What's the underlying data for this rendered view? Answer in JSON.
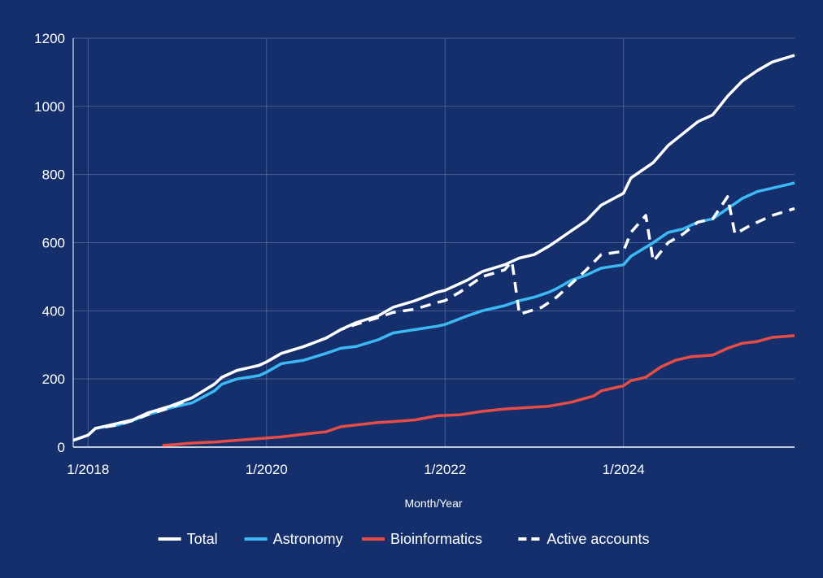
{
  "chart_data": {
    "type": "line",
    "title": "",
    "xlabel": "Month/Year",
    "ylabel": "",
    "xlim": [
      "2017-11",
      "2025-12"
    ],
    "ylim": [
      0,
      1200
    ],
    "y_ticks": [
      0,
      200,
      400,
      600,
      800,
      1000,
      1200
    ],
    "x_ticks": [
      {
        "at": "2018-01",
        "label": "1/2018"
      },
      {
        "at": "2020-01",
        "label": "1/2020"
      },
      {
        "at": "2022-01",
        "label": "1/2022"
      },
      {
        "at": "2024-01",
        "label": "1/2024"
      }
    ],
    "grid": true,
    "legend_position": "bottom",
    "colors": {
      "background": "#142f6b",
      "grid": "#4a5f93",
      "axis": "#ffffff"
    },
    "series": [
      {
        "name": "Total",
        "color": "#ffffff",
        "dash": "solid",
        "points": [
          [
            "2017-11",
            20
          ],
          [
            "2018-01",
            35
          ],
          [
            "2018-02",
            55
          ],
          [
            "2018-05",
            70
          ],
          [
            "2018-07",
            80
          ],
          [
            "2018-09",
            100
          ],
          [
            "2018-12",
            120
          ],
          [
            "2019-03",
            145
          ],
          [
            "2019-06",
            185
          ],
          [
            "2019-07",
            205
          ],
          [
            "2019-09",
            225
          ],
          [
            "2019-12",
            240
          ],
          [
            "2020-01",
            250
          ],
          [
            "2020-03",
            275
          ],
          [
            "2020-06",
            295
          ],
          [
            "2020-09",
            320
          ],
          [
            "2020-11",
            345
          ],
          [
            "2021-01",
            365
          ],
          [
            "2021-04",
            385
          ],
          [
            "2021-06",
            410
          ],
          [
            "2021-09",
            430
          ],
          [
            "2021-12",
            455
          ],
          [
            "2022-01",
            460
          ],
          [
            "2022-04",
            490
          ],
          [
            "2022-06",
            515
          ],
          [
            "2022-09",
            535
          ],
          [
            "2022-11",
            555
          ],
          [
            "2023-01",
            565
          ],
          [
            "2023-03",
            590
          ],
          [
            "2023-04",
            605
          ],
          [
            "2023-06",
            635
          ],
          [
            "2023-08",
            665
          ],
          [
            "2023-10",
            710
          ],
          [
            "2024-01",
            745
          ],
          [
            "2024-02",
            790
          ],
          [
            "2024-05",
            835
          ],
          [
            "2024-07",
            885
          ],
          [
            "2024-09",
            920
          ],
          [
            "2024-11",
            955
          ],
          [
            "2025-01",
            975
          ],
          [
            "2025-03",
            1030
          ],
          [
            "2025-05",
            1075
          ],
          [
            "2025-07",
            1105
          ],
          [
            "2025-09",
            1130
          ],
          [
            "2025-12",
            1150
          ]
        ]
      },
      {
        "name": "Astronomy",
        "color": "#3cb9f4",
        "dash": "solid",
        "points": [
          [
            "2017-11",
            20
          ],
          [
            "2018-01",
            35
          ],
          [
            "2018-02",
            55
          ],
          [
            "2018-05",
            65
          ],
          [
            "2018-07",
            78
          ],
          [
            "2018-09",
            95
          ],
          [
            "2018-12",
            115
          ],
          [
            "2019-03",
            130
          ],
          [
            "2019-06",
            165
          ],
          [
            "2019-07",
            185
          ],
          [
            "2019-09",
            200
          ],
          [
            "2019-12",
            210
          ],
          [
            "2020-01",
            220
          ],
          [
            "2020-03",
            245
          ],
          [
            "2020-06",
            255
          ],
          [
            "2020-09",
            275
          ],
          [
            "2020-11",
            290
          ],
          [
            "2021-01",
            295
          ],
          [
            "2021-04",
            315
          ],
          [
            "2021-06",
            335
          ],
          [
            "2021-09",
            345
          ],
          [
            "2021-12",
            355
          ],
          [
            "2022-01",
            360
          ],
          [
            "2022-04",
            385
          ],
          [
            "2022-06",
            400
          ],
          [
            "2022-09",
            415
          ],
          [
            "2022-11",
            430
          ],
          [
            "2023-01",
            440
          ],
          [
            "2023-03",
            455
          ],
          [
            "2023-04",
            465
          ],
          [
            "2023-06",
            490
          ],
          [
            "2023-08",
            505
          ],
          [
            "2023-10",
            525
          ],
          [
            "2024-01",
            535
          ],
          [
            "2024-02",
            560
          ],
          [
            "2024-05",
            600
          ],
          [
            "2024-07",
            630
          ],
          [
            "2024-09",
            640
          ],
          [
            "2024-11",
            660
          ],
          [
            "2025-01",
            670
          ],
          [
            "2025-03",
            700
          ],
          [
            "2025-05",
            730
          ],
          [
            "2025-07",
            750
          ],
          [
            "2025-09",
            760
          ],
          [
            "2025-12",
            775
          ]
        ]
      },
      {
        "name": "Bioinformatics",
        "color": "#e84c46",
        "dash": "solid",
        "points": [
          [
            "2018-11",
            5
          ],
          [
            "2019-01",
            8
          ],
          [
            "2019-03",
            12
          ],
          [
            "2019-06",
            15
          ],
          [
            "2019-09",
            20
          ],
          [
            "2019-12",
            25
          ],
          [
            "2020-03",
            30
          ],
          [
            "2020-06",
            38
          ],
          [
            "2020-09",
            45
          ],
          [
            "2020-11",
            60
          ],
          [
            "2021-01",
            65
          ],
          [
            "2021-04",
            72
          ],
          [
            "2021-06",
            75
          ],
          [
            "2021-09",
            80
          ],
          [
            "2021-12",
            92
          ],
          [
            "2022-03",
            95
          ],
          [
            "2022-06",
            105
          ],
          [
            "2022-09",
            112
          ],
          [
            "2022-12",
            116
          ],
          [
            "2023-03",
            120
          ],
          [
            "2023-06",
            132
          ],
          [
            "2023-09",
            150
          ],
          [
            "2023-10",
            165
          ],
          [
            "2024-01",
            180
          ],
          [
            "2024-02",
            195
          ],
          [
            "2024-04",
            205
          ],
          [
            "2024-06",
            235
          ],
          [
            "2024-08",
            255
          ],
          [
            "2024-10",
            265
          ],
          [
            "2025-01",
            270
          ],
          [
            "2025-03",
            290
          ],
          [
            "2025-05",
            305
          ],
          [
            "2025-07",
            310
          ],
          [
            "2025-09",
            322
          ],
          [
            "2025-12",
            327
          ]
        ]
      },
      {
        "name": "Active accounts",
        "color": "#ffffff",
        "dash": "dashed",
        "points": [
          [
            "2017-11",
            20
          ],
          [
            "2018-01",
            35
          ],
          [
            "2018-02",
            55
          ],
          [
            "2018-05",
            65
          ],
          [
            "2018-07",
            78
          ],
          [
            "2018-09",
            95
          ],
          [
            "2018-12",
            115
          ],
          [
            "2019-03",
            145
          ],
          [
            "2019-06",
            185
          ],
          [
            "2019-07",
            205
          ],
          [
            "2019-09",
            225
          ],
          [
            "2019-12",
            240
          ],
          [
            "2020-01",
            250
          ],
          [
            "2020-03",
            275
          ],
          [
            "2020-06",
            295
          ],
          [
            "2020-09",
            320
          ],
          [
            "2020-11",
            345
          ],
          [
            "2021-01",
            360
          ],
          [
            "2021-04",
            380
          ],
          [
            "2021-06",
            395
          ],
          [
            "2021-09",
            405
          ],
          [
            "2021-12",
            425
          ],
          [
            "2022-01",
            430
          ],
          [
            "2022-03",
            455
          ],
          [
            "2022-06",
            500
          ],
          [
            "2022-09",
            520
          ],
          [
            "2022-10",
            545
          ],
          [
            "2022-11",
            390
          ],
          [
            "2023-02",
            410
          ],
          [
            "2023-04",
            440
          ],
          [
            "2023-06",
            480
          ],
          [
            "2023-08",
            520
          ],
          [
            "2023-10",
            565
          ],
          [
            "2024-01",
            575
          ],
          [
            "2024-02",
            630
          ],
          [
            "2024-04",
            680
          ],
          [
            "2024-05",
            545
          ],
          [
            "2024-07",
            600
          ],
          [
            "2024-09",
            625
          ],
          [
            "2024-11",
            660
          ],
          [
            "2025-01",
            670
          ],
          [
            "2025-03",
            735
          ],
          [
            "2025-04",
            625
          ],
          [
            "2025-06",
            650
          ],
          [
            "2025-09",
            680
          ],
          [
            "2025-12",
            700
          ]
        ]
      }
    ]
  }
}
